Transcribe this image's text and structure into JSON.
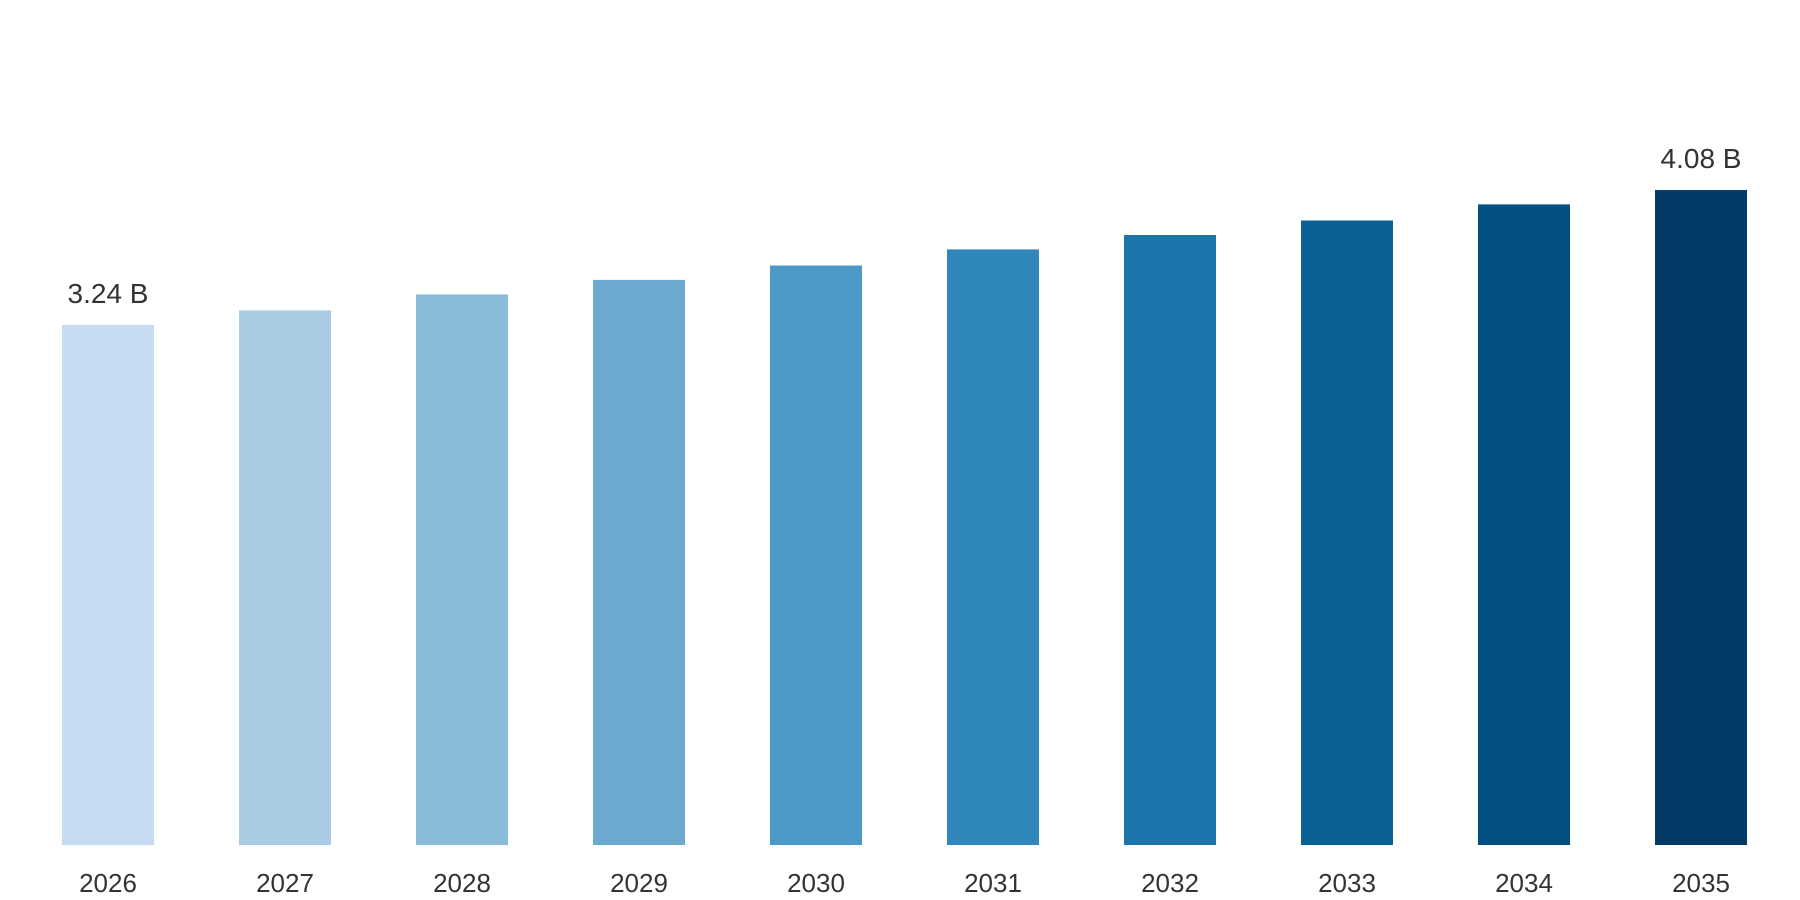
{
  "chart_data": {
    "type": "bar",
    "title": "",
    "xlabel": "",
    "ylabel": "",
    "categories": [
      "2026",
      "2027",
      "2028",
      "2029",
      "2030",
      "2031",
      "2032",
      "2033",
      "2034",
      "2035"
    ],
    "values": [
      3.24,
      3.33,
      3.43,
      3.52,
      3.61,
      3.71,
      3.8,
      3.89,
      3.99,
      4.08
    ],
    "data_labels": [
      {
        "index": 0,
        "text": "3.24 B"
      },
      {
        "index": 9,
        "text": "4.08 B"
      }
    ],
    "colors": [
      "#c6dbef",
      "#a9cbe3",
      "#89bbda",
      "#6aaacf",
      "#4a99c6",
      "#2f87bc",
      "#1c75aa",
      "#0b6096",
      "#024f83",
      "#023b67"
    ],
    "ylim": [
      0,
      4.08
    ],
    "grid": false,
    "legend": "none"
  }
}
